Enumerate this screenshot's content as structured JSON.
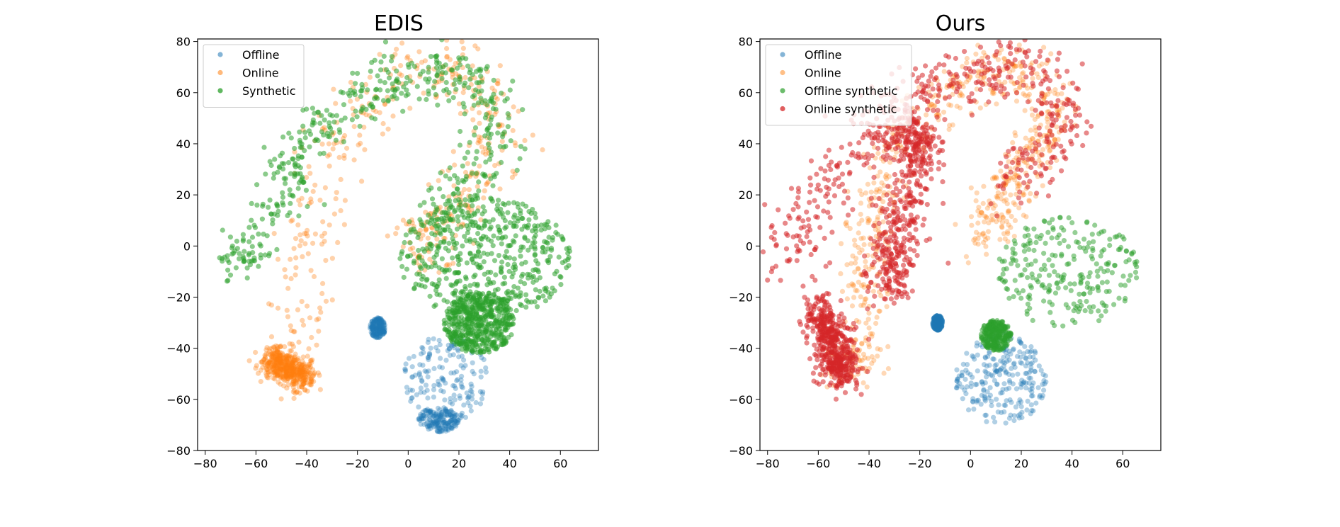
{
  "chart_data": [
    {
      "type": "scatter",
      "title": "EDIS",
      "xlabel": "",
      "ylabel": "",
      "xlim": [
        -83,
        75
      ],
      "ylim": [
        -80,
        81
      ],
      "xticks": [
        "−80",
        "−60",
        "−40",
        "−20",
        "0",
        "20",
        "40",
        "60"
      ],
      "yticks": [
        "80",
        "60",
        "40",
        "20",
        "0",
        "−20",
        "−40",
        "−60",
        "−80"
      ],
      "legend_position": "top-left",
      "grid": false,
      "series": [
        {
          "name": "Offline",
          "color": "#1f77b4",
          "opacity": 0.35,
          "point_count": 500,
          "regions": [
            {
              "shape": "ellipse",
              "center": [
                15,
                -52
              ],
              "radius": [
                17,
                17
              ]
            },
            {
              "shape": "ellipse",
              "center": [
                -12,
                -32
              ],
              "radius": [
                3,
                4
              ]
            },
            {
              "shape": "ellipse",
              "center": [
                12,
                -68
              ],
              "radius": [
                8,
                5
              ]
            }
          ]
        },
        {
          "name": "Online",
          "color": "#ff7f0e",
          "opacity": 0.35,
          "point_count": 900,
          "regions": [
            {
              "shape": "curve",
              "points": [
                [
                  -46,
                  -50
                ],
                [
                  -44,
                  -40
                ],
                [
                  -42,
                  -20
                ],
                [
                  -40,
                  0
                ],
                [
                  -36,
                  20
                ],
                [
                  -30,
                  40
                ],
                [
                  -18,
                  55
                ],
                [
                  -5,
                  66
                ],
                [
                  10,
                  70
                ],
                [
                  22,
                  68
                ],
                [
                  33,
                  58
                ],
                [
                  36,
                  44
                ],
                [
                  28,
                  32
                ],
                [
                  22,
                  22
                ],
                [
                  14,
                  12
                ],
                [
                  6,
                  2
                ],
                [
                  3,
                  -5
                ]
              ],
              "spread": 6
            },
            {
              "shape": "curve",
              "points": [
                [
                  -53,
                  -44
                ],
                [
                  -48,
                  -48
                ],
                [
                  -40,
                  -52
                ]
              ],
              "spread": 3
            }
          ]
        },
        {
          "name": "Synthetic",
          "color": "#2ca02c",
          "opacity": 0.55,
          "point_count": 1500,
          "regions": [
            {
              "shape": "ellipse",
              "center": [
                30,
                -5
              ],
              "radius": [
                34,
                24
              ]
            },
            {
              "shape": "ellipse",
              "center": [
                28,
                -30
              ],
              "radius": [
                14,
                12
              ]
            },
            {
              "shape": "curve",
              "points": [
                [
                  -70,
                  -8
                ],
                [
                  -62,
                  -4
                ],
                [
                  -55,
                  5
                ],
                [
                  -50,
                  20
                ],
                [
                  -46,
                  30
                ],
                [
                  -42,
                  42
                ],
                [
                  -30,
                  50
                ],
                [
                  -18,
                  58
                ],
                [
                  -5,
                  65
                ],
                [
                  10,
                  68
                ],
                [
                  24,
                  66
                ],
                [
                  32,
                  56
                ],
                [
                  36,
                  46
                ],
                [
                  30,
                  34
                ],
                [
                  22,
                  24
                ],
                [
                  16,
                  16
                ],
                [
                  10,
                  6
                ]
              ],
              "spread": 5
            }
          ]
        }
      ]
    },
    {
      "type": "scatter",
      "title": "Ours",
      "xlabel": "",
      "ylabel": "",
      "xlim": [
        -83,
        75
      ],
      "ylim": [
        -80,
        81
      ],
      "xticks": [
        "−80",
        "−60",
        "−40",
        "−20",
        "0",
        "20",
        "40",
        "60"
      ],
      "yticks": [
        "80",
        "60",
        "40",
        "20",
        "0",
        "−20",
        "−40",
        "−60",
        "−80"
      ],
      "legend_position": "top-left",
      "grid": false,
      "series": [
        {
          "name": "Offline",
          "color": "#1f77b4",
          "opacity": 0.35,
          "point_count": 500,
          "regions": [
            {
              "shape": "ellipse",
              "center": [
                12,
                -52
              ],
              "radius": [
                18,
                18
              ]
            },
            {
              "shape": "ellipse",
              "center": [
                -13,
                -30
              ],
              "radius": [
                2,
                3
              ]
            }
          ]
        },
        {
          "name": "Online",
          "color": "#ff7f0e",
          "opacity": 0.3,
          "point_count": 700,
          "regions": [
            {
              "shape": "curve",
              "points": [
                [
                  -48,
                  -50
                ],
                [
                  -44,
                  -40
                ],
                [
                  -42,
                  -20
                ],
                [
                  -40,
                  0
                ],
                [
                  -36,
                  20
                ],
                [
                  -28,
                  40
                ],
                [
                  -15,
                  55
                ],
                [
                  0,
                  64
                ],
                [
                  15,
                  70
                ],
                [
                  28,
                  62
                ],
                [
                  34,
                  50
                ],
                [
                  28,
                  40
                ],
                [
                  20,
                  30
                ],
                [
                  14,
                  20
                ],
                [
                  8,
                  10
                ],
                [
                  4,
                  0
                ]
              ],
              "spread": 5
            }
          ]
        },
        {
          "name": "Offline synthetic",
          "color": "#2ca02c",
          "opacity": 0.5,
          "point_count": 500,
          "regions": [
            {
              "shape": "ellipse",
              "center": [
                38,
                -10
              ],
              "radius": [
                28,
                22
              ]
            },
            {
              "shape": "ellipse",
              "center": [
                10,
                -35
              ],
              "radius": [
                6,
                6
              ]
            }
          ]
        },
        {
          "name": "Online synthetic",
          "color": "#d62728",
          "opacity": 0.55,
          "point_count": 1500,
          "regions": [
            {
              "shape": "curve",
              "points": [
                [
                  -75,
                  -10
                ],
                [
                  -68,
                  5
                ],
                [
                  -60,
                  18
                ],
                [
                  -50,
                  30
                ],
                [
                  -40,
                  45
                ],
                [
                  -25,
                  55
                ],
                [
                  -10,
                  62
                ],
                [
                  5,
                  68
                ],
                [
                  20,
                  70
                ],
                [
                  32,
                  62
                ],
                [
                  38,
                  52
                ],
                [
                  32,
                  40
                ],
                [
                  22,
                  30
                ],
                [
                  16,
                  20
                ]
              ],
              "spread": 6
            },
            {
              "shape": "curve",
              "points": [
                [
                  -60,
                  -25
                ],
                [
                  -55,
                  -35
                ],
                [
                  -52,
                  -45
                ],
                [
                  -50,
                  -50
                ]
              ],
              "spread": 4
            },
            {
              "shape": "curve",
              "points": [
                [
                  -32,
                  -20
                ],
                [
                  -30,
                  0
                ],
                [
                  -25,
                  20
                ],
                [
                  -20,
                  40
                ],
                [
                  -28,
                  45
                ]
              ],
              "spread": 5
            }
          ]
        }
      ]
    }
  ]
}
